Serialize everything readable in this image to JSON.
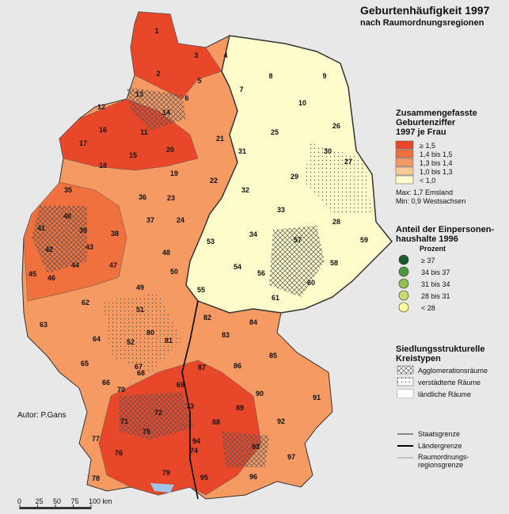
{
  "title": "Geburtenhäufigkeit 1997",
  "subtitle": "nach Raumordnungsregionen",
  "fertility_legend": {
    "title_lines": [
      "Zusammengefasste",
      "Geburtenziffer",
      "1997 je Frau"
    ],
    "classes": [
      {
        "label": "≥ 1,5",
        "color": "#e8472a"
      },
      {
        "label": "1,4 bis 1,5",
        "color": "#f0703e"
      },
      {
        "label": "1,3 bis 1,4",
        "color": "#f59a63"
      },
      {
        "label": "1,0 bis 1,3",
        "color": "#fbc996"
      },
      {
        "label": "< 1,0",
        "color": "#fffccc"
      }
    ],
    "max": "Max: 1,7 Emsland",
    "min": "Min: 0,9 Westsachsen"
  },
  "household_legend": {
    "title_lines": [
      "Anteil der Einpersonen-",
      "haushalte 1996"
    ],
    "unit": "Prozent",
    "classes": [
      {
        "label": "≥ 37",
        "color": "#1a5c2a"
      },
      {
        "label": "34 bis 37",
        "color": "#4a9a3a"
      },
      {
        "label": "31 bis 34",
        "color": "#8cc050"
      },
      {
        "label": "28 bis 31",
        "color": "#c8dc70"
      },
      {
        "label": "< 28",
        "color": "#ffff99"
      }
    ]
  },
  "settlement_legend": {
    "title_lines": [
      "Siedlungsstrukturelle",
      "Kreistypen"
    ],
    "classes": [
      "Agglomerationsräume",
      "verstädterte Räume",
      "ländliche Räume"
    ]
  },
  "border_legend": [
    "Staatsgrenze",
    "Ländergrenze",
    "Raumordnungs-",
    "regionsgrenze"
  ],
  "author": "Autor:  P.Gans",
  "scale": [
    "0",
    "25",
    "50",
    "75",
    "100 km"
  ],
  "region_labels": [
    "1",
    "2",
    "3",
    "4",
    "5",
    "6",
    "7",
    "8",
    "9",
    "10",
    "11",
    "12",
    "13",
    "14",
    "15",
    "16",
    "17",
    "18",
    "19",
    "20",
    "21",
    "22",
    "23",
    "24",
    "25",
    "26",
    "27",
    "28",
    "29",
    "30",
    "31",
    "32",
    "33",
    "34",
    "35",
    "36",
    "37",
    "38",
    "39",
    "40",
    "41",
    "42",
    "43",
    "44",
    "45",
    "46",
    "47",
    "48",
    "49",
    "50",
    "51",
    "52",
    "53",
    "54",
    "55",
    "56",
    "57",
    "58",
    "59",
    "60",
    "61",
    "62",
    "63",
    "64",
    "65",
    "66",
    "67",
    "68",
    "69",
    "70",
    "71",
    "72",
    "73",
    "74",
    "75",
    "76",
    "77",
    "78",
    "79",
    "80",
    "81",
    "82",
    "83",
    "84",
    "85",
    "86",
    "87",
    "88",
    "89",
    "90",
    "91",
    "92",
    "93",
    "94",
    "95",
    "96",
    "97"
  ]
}
